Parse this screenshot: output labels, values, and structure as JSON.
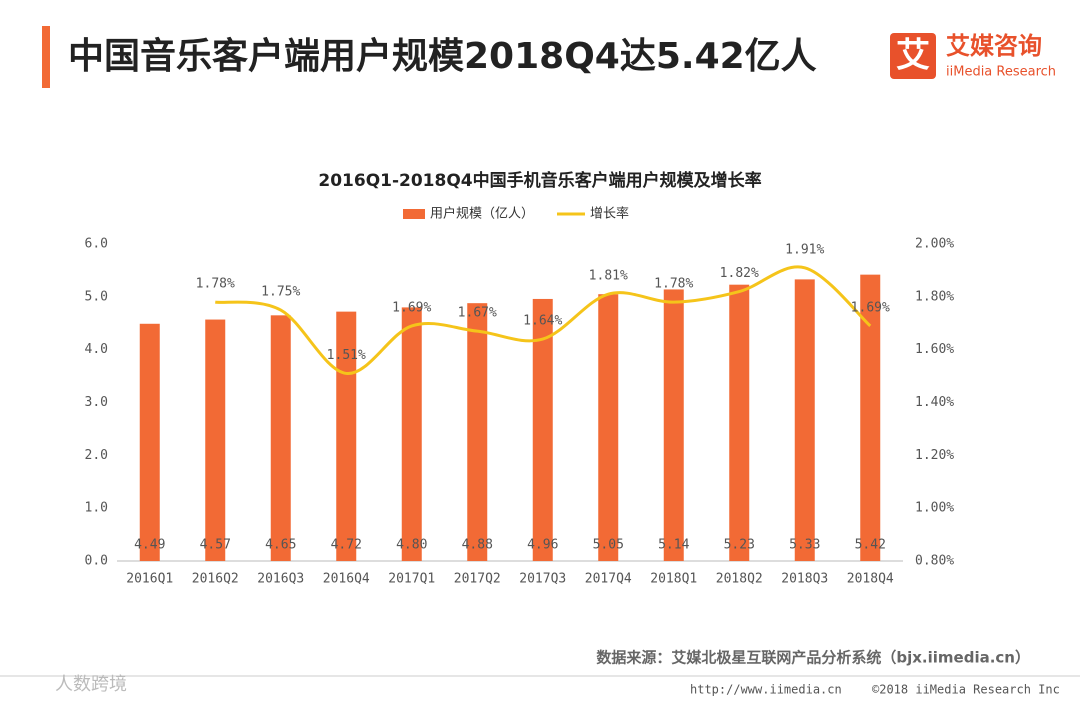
{
  "header": {
    "title": "中国音乐客户端用户规模2018Q4达5.42亿人",
    "logo_mark": "艾",
    "logo_name": "艾媒咨询",
    "logo_sub": "iiMedia Research"
  },
  "chart_data": {
    "type": "bar_line",
    "title": "2016Q1-2018Q4中国手机音乐客户端用户规模及增长率",
    "categories": [
      "2016Q1",
      "2016Q2",
      "2016Q3",
      "2016Q4",
      "2017Q1",
      "2017Q2",
      "2017Q3",
      "2017Q4",
      "2018Q1",
      "2018Q2",
      "2018Q3",
      "2018Q4"
    ],
    "series": [
      {
        "name": "用户规模（亿人）",
        "color": "#f26a35",
        "type": "bar",
        "values": [
          4.49,
          4.57,
          4.65,
          4.72,
          4.8,
          4.88,
          4.96,
          5.05,
          5.14,
          5.23,
          5.33,
          5.42
        ],
        "value_labels": [
          "4.49",
          "4.57",
          "4.65",
          "4.72",
          "4.80",
          "4.88",
          "4.96",
          "5.05",
          "5.14",
          "5.23",
          "5.33",
          "5.42"
        ]
      },
      {
        "name": "增长率",
        "color": "#f5c41a",
        "type": "line",
        "axis": "y2",
        "values": [
          null,
          1.78,
          1.75,
          1.51,
          1.69,
          1.67,
          1.64,
          1.81,
          1.78,
          1.82,
          1.91,
          1.69
        ],
        "value_labels": [
          null,
          "1.78%",
          "1.75%",
          "1.51%",
          "1.69%",
          "1.67%",
          "1.64%",
          "1.81%",
          "1.78%",
          "1.82%",
          "1.91%",
          "1.69%"
        ]
      }
    ],
    "ylim": [
      0,
      6
    ],
    "yticks": [
      {
        "value": 0,
        "label": "0.0"
      },
      {
        "value": 1,
        "label": "1.0"
      },
      {
        "value": 2,
        "label": "2.0"
      },
      {
        "value": 3,
        "label": "3.0"
      },
      {
        "value": 4,
        "label": "4.0"
      },
      {
        "value": 5,
        "label": "5.0"
      },
      {
        "value": 6,
        "label": "6.0"
      }
    ],
    "y2lim": [
      0.8,
      2.0
    ],
    "y2ticks": [
      {
        "value": 0.8,
        "label": "0.80%"
      },
      {
        "value": 1.0,
        "label": "1.00%"
      },
      {
        "value": 1.2,
        "label": "1.20%"
      },
      {
        "value": 1.4,
        "label": "1.40%"
      },
      {
        "value": 1.6,
        "label": "1.60%"
      },
      {
        "value": 1.8,
        "label": "1.80%"
      },
      {
        "value": 2.0,
        "label": "2.00%"
      }
    ],
    "grid": false,
    "legend": "top",
    "source": "数据来源：艾媒北极星互联网产品分析系统（bjx.iimedia.cn）"
  },
  "footer": {
    "url": "http://www.iimedia.cn",
    "copyright": "©2018  iiMedia Research  Inc",
    "watermark": "人数跨境"
  }
}
